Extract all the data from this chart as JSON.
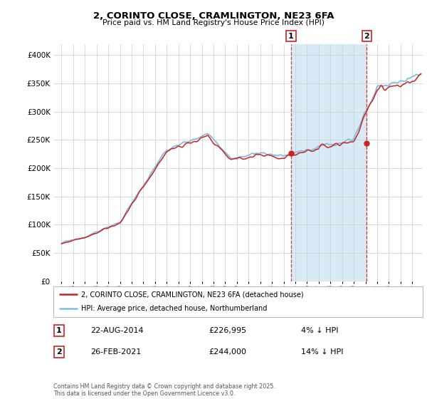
{
  "title": "2, CORINTO CLOSE, CRAMLINGTON, NE23 6FA",
  "subtitle": "Price paid vs. HM Land Registry's House Price Index (HPI)",
  "legend_line1": "2, CORINTO CLOSE, CRAMLINGTON, NE23 6FA (detached house)",
  "legend_line2": "HPI: Average price, detached house, Northumberland",
  "annotation1_label": "1",
  "annotation1_date": "22-AUG-2014",
  "annotation1_price": "£226,995",
  "annotation1_hpi": "4% ↓ HPI",
  "annotation2_label": "2",
  "annotation2_date": "26-FEB-2021",
  "annotation2_price": "£244,000",
  "annotation2_hpi": "14% ↓ HPI",
  "footer": "Contains HM Land Registry data © Crown copyright and database right 2025.\nThis data is licensed under the Open Government Licence v3.0.",
  "hpi_color": "#7fbfdf",
  "price_color": "#cc2222",
  "vline_color": "#cc2222",
  "shade_color": "#d8eaf5",
  "background_color": "#ffffff",
  "grid_color": "#cccccc",
  "ylim": [
    0,
    420000
  ],
  "yticks": [
    0,
    50000,
    100000,
    150000,
    200000,
    250000,
    300000,
    350000,
    400000
  ],
  "sale1_x": 2014.63,
  "sale1_y": 226995,
  "sale2_x": 2021.12,
  "sale2_y": 244000,
  "xlim_left": 1994.3,
  "xlim_right": 2025.9
}
